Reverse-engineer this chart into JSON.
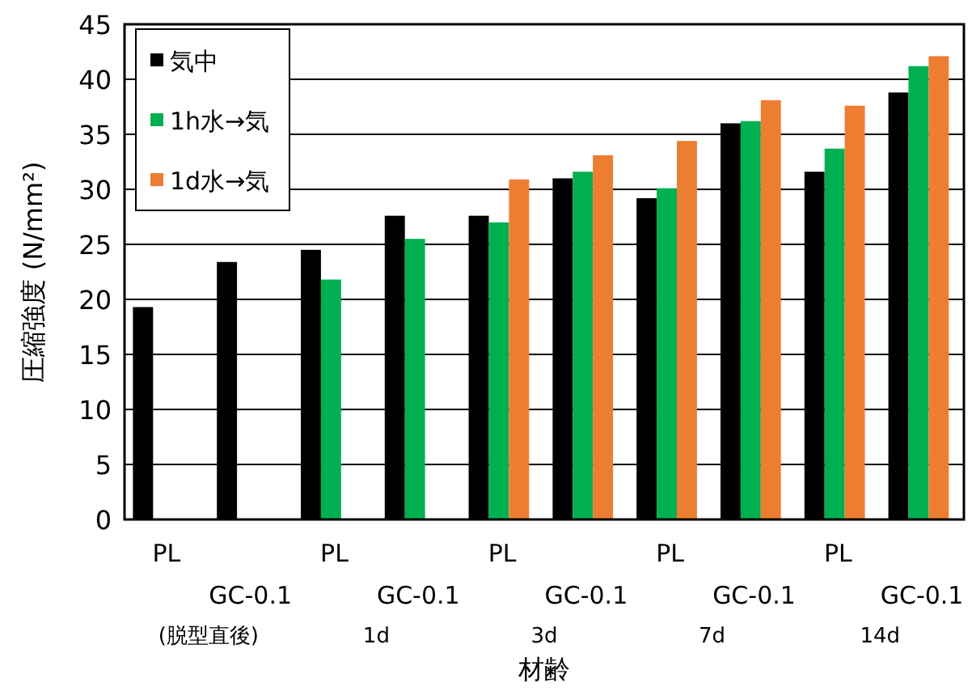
{
  "chart_data": {
    "type": "bar",
    "ylabel": "圧縮強度 (N/mm²)",
    "xlabel": "材齢",
    "categories": [
      "PL",
      "GC-0.1",
      "PL",
      "GC-0.1",
      "PL",
      "GC-0.1",
      "PL",
      "GC-0.1",
      "PL",
      "GC-0.1"
    ],
    "series": [
      {
        "name": "気中",
        "color": "#000000",
        "values": [
          19.3,
          23.4,
          24.5,
          27.6,
          27.6,
          31.0,
          29.2,
          36.0,
          31.6,
          38.8
        ]
      },
      {
        "name": "1h水→気",
        "color": "#00b050",
        "values": [
          null,
          null,
          21.8,
          25.5,
          27.0,
          31.6,
          30.1,
          36.2,
          33.7,
          41.2
        ]
      },
      {
        "name": "1d水→気",
        "color": "#ed7d31",
        "values": [
          null,
          null,
          null,
          null,
          30.9,
          33.1,
          34.4,
          38.1,
          37.6,
          42.1
        ]
      }
    ],
    "annotations": [
      "(脱型直後)",
      "1d",
      "3d",
      "7d",
      "14d"
    ],
    "ylim": [
      0,
      45
    ],
    "yticks": [
      0,
      5,
      10,
      15,
      20,
      25,
      30,
      35,
      40,
      45
    ],
    "grid": "y",
    "legend": "top left"
  }
}
